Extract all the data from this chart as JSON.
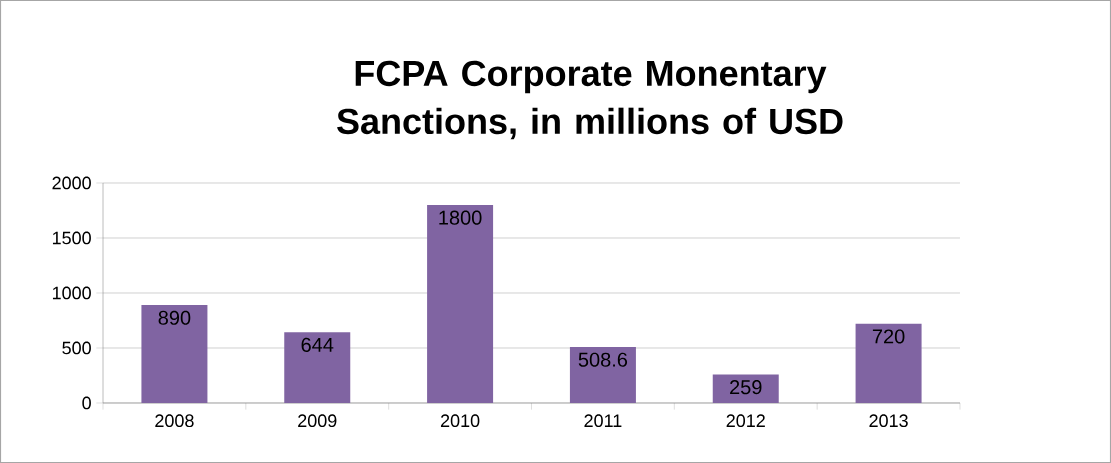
{
  "chart_data": {
    "type": "bar",
    "title": "FCPA Corporate Monentary Sanctions, in millions of USD",
    "categories": [
      "2008",
      "2009",
      "2010",
      "2011",
      "2012",
      "2013"
    ],
    "values": [
      890,
      644,
      1800,
      508.6,
      259,
      720
    ],
    "color": "#8064a2",
    "ylim": [
      0,
      2000
    ],
    "yticks": [
      0,
      500,
      1000,
      1500,
      2000
    ],
    "grid": "y",
    "data_labels": true
  }
}
